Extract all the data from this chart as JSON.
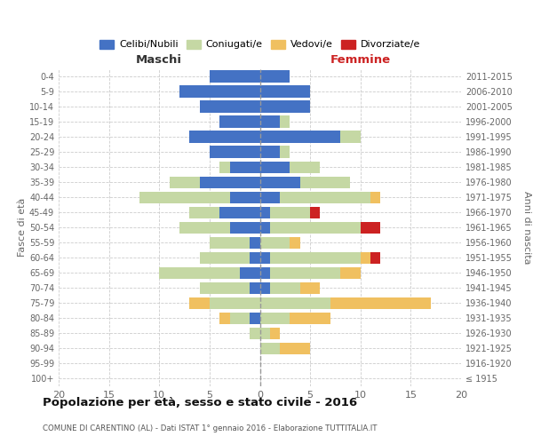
{
  "age_groups": [
    "100+",
    "95-99",
    "90-94",
    "85-89",
    "80-84",
    "75-79",
    "70-74",
    "65-69",
    "60-64",
    "55-59",
    "50-54",
    "45-49",
    "40-44",
    "35-39",
    "30-34",
    "25-29",
    "20-24",
    "15-19",
    "10-14",
    "5-9",
    "0-4"
  ],
  "birth_years": [
    "≤ 1915",
    "1916-1920",
    "1921-1925",
    "1926-1930",
    "1931-1935",
    "1936-1940",
    "1941-1945",
    "1946-1950",
    "1951-1955",
    "1956-1960",
    "1961-1965",
    "1966-1970",
    "1971-1975",
    "1976-1980",
    "1981-1985",
    "1986-1990",
    "1991-1995",
    "1996-2000",
    "2001-2005",
    "2006-2010",
    "2011-2015"
  ],
  "colors": {
    "celibi": "#4472c4",
    "coniugati": "#c5d8a4",
    "vedovi": "#f0c060",
    "divorziati": "#cc2222"
  },
  "maschi": {
    "celibi": [
      0,
      0,
      0,
      0,
      1,
      0,
      1,
      2,
      1,
      1,
      3,
      4,
      3,
      6,
      3,
      5,
      7,
      4,
      6,
      8,
      5
    ],
    "coniugati": [
      0,
      0,
      0,
      1,
      2,
      5,
      5,
      8,
      5,
      4,
      5,
      3,
      9,
      3,
      1,
      0,
      0,
      0,
      0,
      0,
      0
    ],
    "vedovi": [
      0,
      0,
      0,
      0,
      1,
      2,
      0,
      0,
      0,
      0,
      0,
      0,
      0,
      0,
      0,
      0,
      0,
      0,
      0,
      0,
      0
    ],
    "divorziati": [
      0,
      0,
      0,
      0,
      0,
      0,
      0,
      0,
      0,
      0,
      0,
      0,
      0,
      0,
      0,
      0,
      0,
      0,
      0,
      0,
      0
    ]
  },
  "femmine": {
    "celibi": [
      0,
      0,
      0,
      0,
      0,
      0,
      1,
      1,
      1,
      0,
      1,
      1,
      2,
      4,
      3,
      2,
      8,
      2,
      5,
      5,
      3
    ],
    "coniugati": [
      0,
      0,
      2,
      1,
      3,
      7,
      3,
      7,
      9,
      3,
      9,
      4,
      9,
      5,
      3,
      1,
      2,
      1,
      0,
      0,
      0
    ],
    "vedovi": [
      0,
      0,
      3,
      1,
      4,
      10,
      2,
      2,
      1,
      1,
      0,
      0,
      1,
      0,
      0,
      0,
      0,
      0,
      0,
      0,
      0
    ],
    "divorziati": [
      0,
      0,
      0,
      0,
      0,
      0,
      0,
      0,
      1,
      0,
      2,
      1,
      0,
      0,
      0,
      0,
      0,
      0,
      0,
      0,
      0
    ]
  },
  "title": "Popolazione per età, sesso e stato civile - 2016",
  "subtitle": "COMUNE DI CARENTINO (AL) - Dati ISTAT 1° gennaio 2016 - Elaborazione TUTTITALIA.IT",
  "xlabel_left": "Maschi",
  "xlabel_right": "Femmine",
  "ylabel_left": "Fasce di età",
  "ylabel_right": "Anni di nascita",
  "xlim": 20,
  "background_color": "#ffffff",
  "grid_color": "#cccccc"
}
